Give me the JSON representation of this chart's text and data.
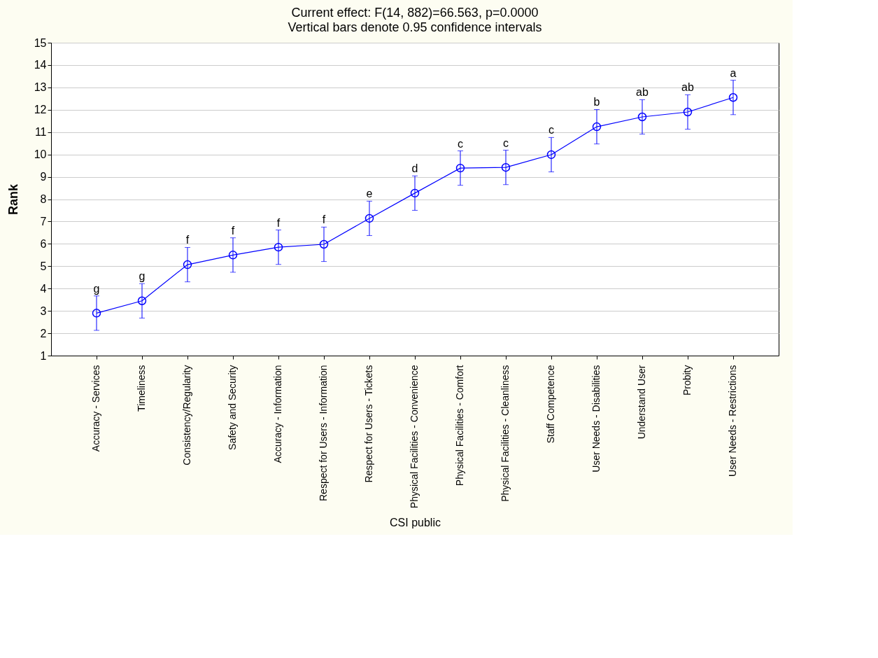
{
  "chart_data": {
    "type": "line",
    "title": "Current effect: F(14, 882)=66.563, p=0.0000",
    "subtitle": "Vertical bars denote 0.95 confidence intervals",
    "xlabel": "CSI public",
    "ylabel": "Rank",
    "categories": [
      "Accuracy - Services",
      "Timeliness",
      "Consistency/Regularity",
      "Safety and Security",
      "Accuracy - Information",
      "Respect for Users - Information",
      "Respect for Users - Tickets",
      "Physical Facilities - Convenience",
      "Physical Facilities - Comfort",
      "Physical Facilities - Cleanliness",
      "Staff Competence",
      "User Needs - Disabilities",
      "Understand User",
      "Probity",
      "User Needs - Restrictions"
    ],
    "series": [
      {
        "color": "#0000ff",
        "values": [
          2.9,
          3.45,
          5.07,
          5.5,
          5.85,
          5.98,
          7.14,
          8.27,
          9.39,
          9.42,
          9.99,
          11.24,
          11.68,
          11.9,
          12.55
        ],
        "errors": [
          0.77,
          0.77,
          0.77,
          0.77,
          0.77,
          0.77,
          0.77,
          0.77,
          0.77,
          0.77,
          0.77,
          0.77,
          0.77,
          0.77,
          0.77
        ],
        "value_labels": [
          "g",
          "g",
          "f",
          "f",
          "f",
          "f",
          "e",
          "d",
          "c",
          "c",
          "c",
          "b",
          "ab",
          "ab",
          "a"
        ]
      }
    ],
    "ylim": [
      1,
      15
    ],
    "yticks": [
      1,
      2,
      3,
      4,
      5,
      6,
      7,
      8,
      9,
      10,
      11,
      12,
      13,
      14,
      15
    ],
    "grid": "y",
    "marker": "circle",
    "line_style": "solid"
  }
}
